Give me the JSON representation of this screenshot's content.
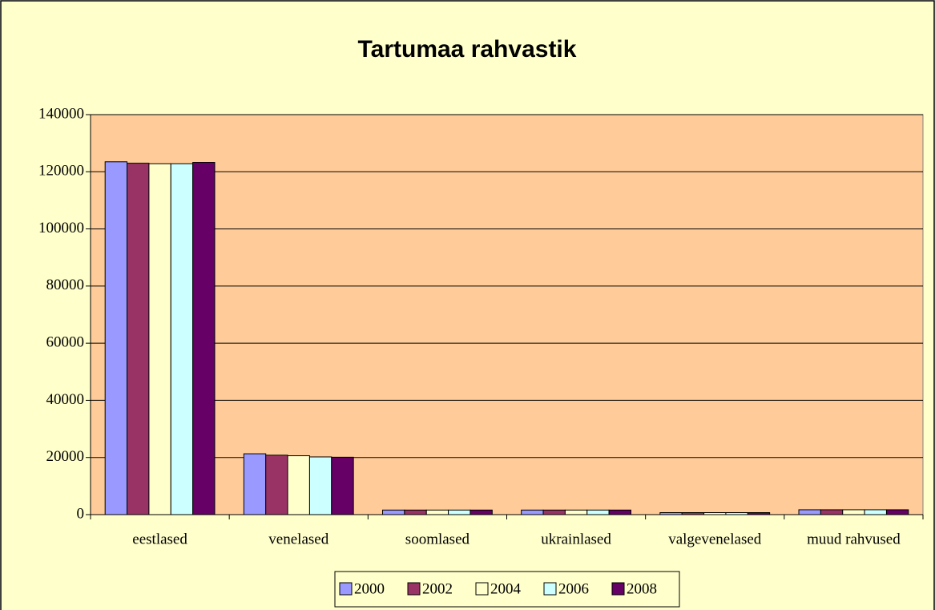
{
  "chart_data": {
    "type": "bar",
    "title": "Tartumaa rahvastik",
    "categories": [
      "eestlased",
      "venelased",
      "soomlased",
      "ukrainlased",
      "valgevenelased",
      "muud rahvused"
    ],
    "series": [
      {
        "name": "2000",
        "color": "#9999FF",
        "values": [
          123500,
          21300,
          1600,
          1600,
          700,
          1700
        ]
      },
      {
        "name": "2002",
        "color": "#993366",
        "values": [
          123000,
          20800,
          1600,
          1600,
          700,
          1700
        ]
      },
      {
        "name": "2004",
        "color": "#FFFFCC",
        "values": [
          122800,
          20600,
          1600,
          1600,
          700,
          1700
        ]
      },
      {
        "name": "2006",
        "color": "#CCFFFF",
        "values": [
          122800,
          20200,
          1600,
          1600,
          700,
          1700
        ]
      },
      {
        "name": "2008",
        "color": "#660066",
        "values": [
          123300,
          20100,
          1600,
          1600,
          700,
          1700
        ]
      }
    ],
    "ylim": [
      0,
      140000
    ],
    "yticks": [
      0,
      20000,
      40000,
      60000,
      80000,
      100000,
      120000,
      140000
    ],
    "grid": true,
    "legend": "bottom"
  }
}
